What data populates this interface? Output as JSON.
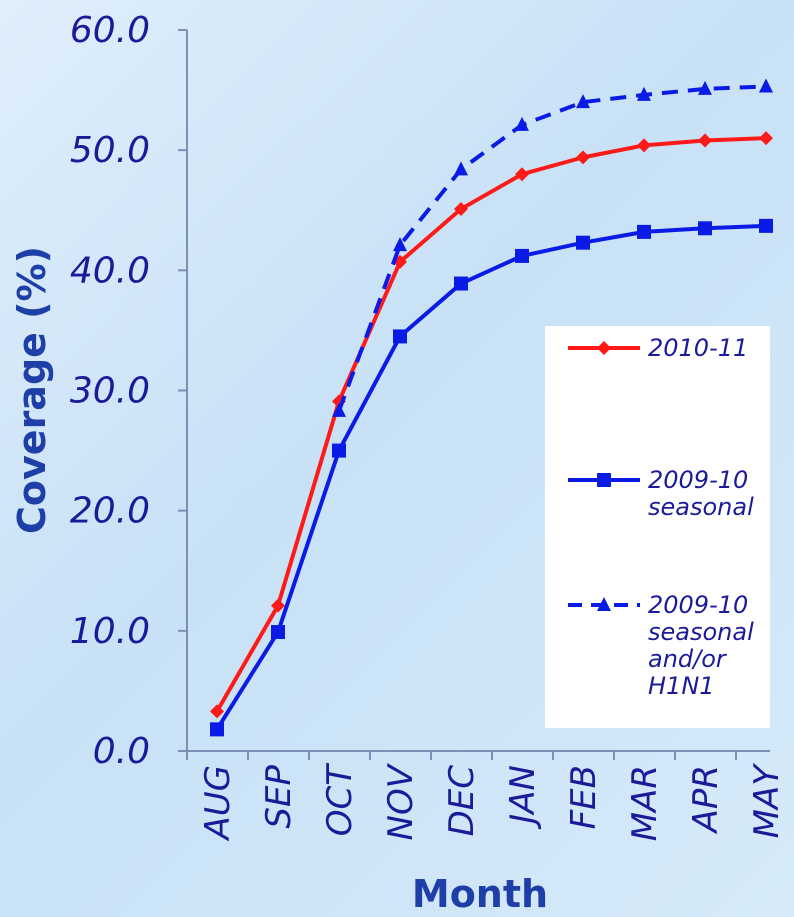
{
  "chart_data": {
    "type": "line",
    "xlabel": "Month",
    "ylabel": "Coverage (%)",
    "categories": [
      "AUG",
      "SEP",
      "OCT",
      "NOV",
      "DEC",
      "JAN",
      "FEB",
      "MAR",
      "APR",
      "MAY"
    ],
    "y_ticks": [
      "0.0",
      "10.0",
      "20.0",
      "30.0",
      "40.0",
      "50.0",
      "60.0"
    ],
    "ylim": [
      0,
      60
    ],
    "grid": false,
    "legend_position": "right",
    "series": [
      {
        "name": "2010-11",
        "color": "#ff1a1a",
        "style": "solid",
        "marker": "diamond",
        "legend_lines": [
          "2010-11"
        ],
        "values": [
          3.3,
          12.1,
          29.1,
          40.7,
          45.1,
          48.0,
          49.4,
          50.4,
          50.8,
          51.0
        ]
      },
      {
        "name": "2009-10 seasonal",
        "color": "#0a1be6",
        "style": "solid",
        "marker": "square",
        "legend_lines": [
          "2009-10",
          "seasonal"
        ],
        "values": [
          1.8,
          9.9,
          25.0,
          34.5,
          38.9,
          41.2,
          42.3,
          43.2,
          43.5,
          43.7
        ]
      },
      {
        "name": "2009-10 seasonal and/or H1N1",
        "color": "#0a1be6",
        "style": "dashed",
        "marker": "triangle",
        "legend_lines": [
          "2009-10",
          "seasonal",
          "and/or",
          "H1N1"
        ],
        "values": [
          null,
          null,
          28.3,
          42.1,
          48.4,
          52.1,
          54.0,
          54.6,
          55.1,
          55.3
        ]
      }
    ]
  }
}
